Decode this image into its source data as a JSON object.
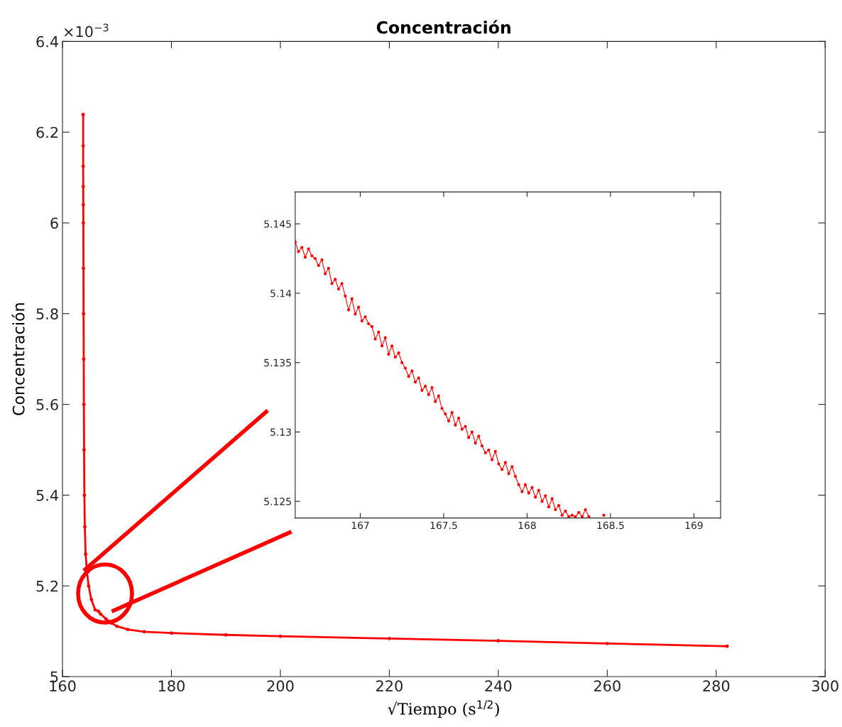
{
  "chart_data": [
    {
      "type": "line",
      "title": "Concentración",
      "xlabel": "√Tiempo (s$^{1/2}$)",
      "ylabel": "Concentración",
      "annotations": [
        "×10$^{−3}$"
      ],
      "series": [
        {
          "color": "#ff0000",
          "x": [
            163.8,
            163.8,
            163.8,
            163.81,
            163.82,
            163.83,
            163.85,
            163.87,
            163.9,
            163.93,
            163.97,
            164.02,
            164.1,
            164.25,
            164.5,
            164.8,
            165.3,
            166,
            166.61,
            167,
            168,
            169,
            170,
            172,
            175,
            180,
            190,
            200,
            220,
            240,
            260,
            282
          ],
          "values": [
            6.239,
            6.17,
            6.125,
            6.08,
            6.04,
            6.0,
            5.9,
            5.8,
            5.7,
            5.6,
            5.5,
            5.4,
            5.33,
            5.27,
            5.23,
            5.2,
            5.17,
            5.147,
            5.144,
            5.138,
            5.127,
            5.118,
            5.111,
            5.104,
            5.099,
            5.096,
            5.092,
            5.089,
            5.084,
            5.079,
            5.073,
            5.067
          ]
        }
      ],
      "xlim": [
        160,
        300
      ],
      "ylim": [
        5,
        6.4
      ],
      "xticks": [
        160,
        180,
        200,
        220,
        240,
        260,
        280,
        300
      ],
      "yticks": [
        5,
        5.2,
        5.4,
        5.6,
        5.8,
        6,
        6.2,
        6.4
      ],
      "marker": "circle",
      "grid": false
    },
    {
      "type": "line",
      "series": [
        {
          "color": "#ff0000",
          "x": [
            166.61,
            166.63,
            166.65,
            166.67,
            166.69,
            166.71,
            166.73,
            166.75,
            166.77,
            166.79,
            166.81,
            166.83,
            166.85,
            166.87,
            166.89,
            166.91,
            166.93,
            166.95,
            166.97,
            166.99,
            167.01,
            167.03,
            167.05,
            167.07,
            167.09,
            167.11,
            167.13,
            167.15,
            167.17,
            167.19,
            167.21,
            167.23,
            167.25,
            167.27,
            167.29,
            167.31,
            167.33,
            167.35,
            167.37,
            167.39,
            167.41,
            167.43,
            167.45,
            167.47,
            167.49,
            167.51,
            167.53,
            167.55,
            167.57,
            167.59,
            167.61,
            167.63,
            167.65,
            167.67,
            167.69,
            167.71,
            167.73,
            167.75,
            167.77,
            167.79,
            167.81,
            167.83,
            167.85,
            167.87,
            167.89,
            167.91,
            167.93,
            167.95,
            167.97,
            167.99,
            168.01,
            168.03,
            168.05,
            168.07,
            168.09,
            168.11,
            168.13,
            168.15,
            168.17,
            168.19,
            168.21,
            168.23,
            168.25,
            168.27,
            168.29,
            168.31,
            168.33,
            168.35,
            168.37,
            168.41,
            168.46
          ],
          "values": [
            5.1437,
            5.143,
            5.1433,
            5.1426,
            5.1432,
            5.1427,
            5.1425,
            5.142,
            5.1424,
            5.1414,
            5.1418,
            5.1407,
            5.141,
            5.1403,
            5.1407,
            5.1398,
            5.1388,
            5.1396,
            5.1385,
            5.139,
            5.138,
            5.1383,
            5.1378,
            5.1376,
            5.1367,
            5.1372,
            5.1362,
            5.1368,
            5.1356,
            5.1362,
            5.1354,
            5.1357,
            5.135,
            5.1346,
            5.134,
            5.1344,
            5.1336,
            5.1339,
            5.133,
            5.1333,
            5.1327,
            5.1332,
            5.1322,
            5.1326,
            5.1317,
            5.1313,
            5.1308,
            5.1314,
            5.1305,
            5.131,
            5.1302,
            5.1304,
            5.1296,
            5.13,
            5.1292,
            5.1297,
            5.129,
            5.1285,
            5.1287,
            5.128,
            5.1286,
            5.1277,
            5.1273,
            5.1278,
            5.127,
            5.1275,
            5.1268,
            5.1262,
            5.1257,
            5.1262,
            5.1256,
            5.126,
            5.1253,
            5.1258,
            5.125,
            5.1254,
            5.1246,
            5.1252,
            5.1244,
            5.1247,
            5.124,
            5.1243,
            5.1239,
            5.124,
            5.1239,
            5.1242,
            5.1239,
            5.1244,
            5.1239,
            null,
            5.124
          ]
        }
      ],
      "xlim": [
        166.61,
        169.16
      ],
      "ylim": [
        5.1238,
        5.1473
      ],
      "xticks": [
        167,
        167.5,
        168,
        168.5,
        169
      ],
      "yticks": [
        5.125,
        5.13,
        5.135,
        5.14,
        5.145
      ],
      "marker": "circle",
      "grid": false
    }
  ]
}
